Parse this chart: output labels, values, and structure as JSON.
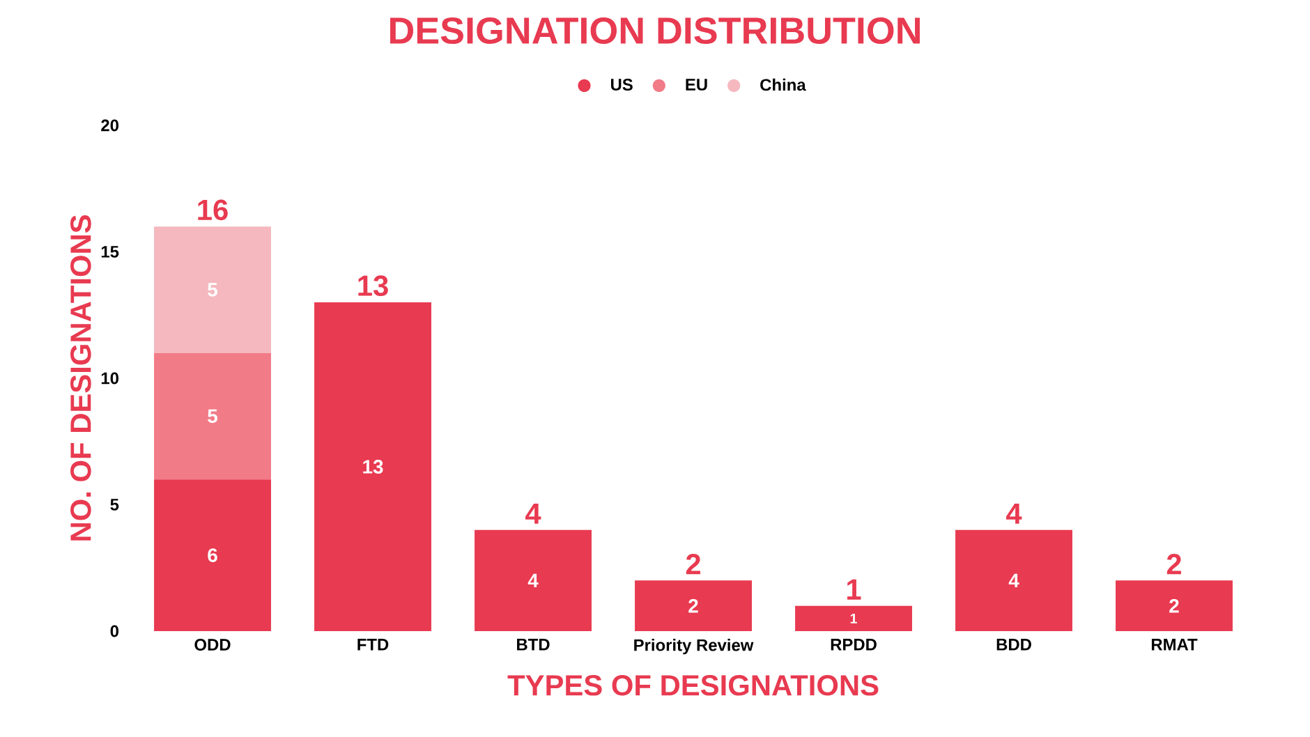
{
  "chart_data": {
    "type": "bar",
    "title": "DESIGNATION DISTRIBUTION",
    "xlabel": "TYPES OF DESIGNATIONS",
    "ylabel": "NO. OF DESIGNATIONS",
    "categories": [
      "ODD",
      "FTD",
      "BTD",
      "Priority Review",
      "RPDD",
      "BDD",
      "RMAT"
    ],
    "series": [
      {
        "name": "US",
        "color": "#e83a50",
        "values": [
          6,
          13,
          4,
          2,
          1,
          4,
          2
        ]
      },
      {
        "name": "EU",
        "color": "#f27b88",
        "values": [
          5,
          null,
          null,
          null,
          null,
          null,
          null
        ]
      },
      {
        "name": "China",
        "color": "#f5b8be",
        "values": [
          5,
          null,
          null,
          null,
          null,
          null,
          null
        ]
      }
    ],
    "stacked": true,
    "data_labels": true,
    "totals": [
      "16",
      "13",
      "4",
      "2",
      "1",
      "4",
      "2"
    ],
    "ylim": [
      0,
      20
    ],
    "yticks": [
      0,
      5,
      10,
      15,
      20
    ],
    "grid": false,
    "legend": "top",
    "marker": "circle"
  }
}
